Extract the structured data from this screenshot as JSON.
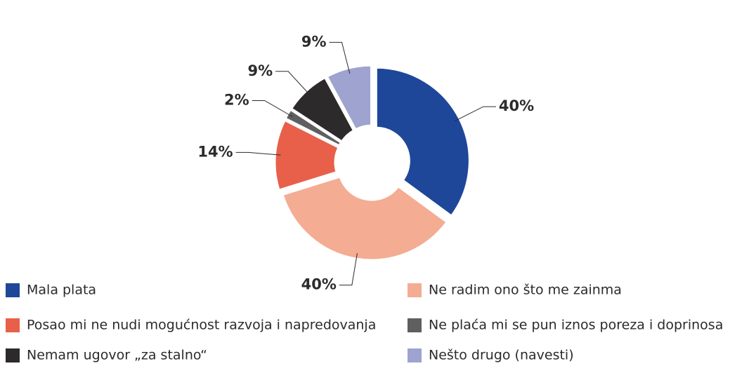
{
  "chart_data": {
    "type": "donut",
    "categories": [
      "Mala plata",
      "Ne radim ono što me zainma",
      "Posao mi ne nudi mogućnost razvoja i napredovanja",
      "Ne plaća mi se pun iznos poreza i doprinosa",
      "Nemam ugovor „za stalno“",
      "Nešto drugo (navesti)"
    ],
    "values": [
      40,
      40,
      14,
      2,
      9,
      9
    ],
    "value_labels": [
      "40%",
      "40%",
      "14%",
      "2%",
      "9%",
      "9%"
    ],
    "colors": [
      "#1e4799",
      "#f4ac93",
      "#e8604a",
      "#5f5f60",
      "#2c2a2b",
      "#9fa3cf"
    ]
  }
}
